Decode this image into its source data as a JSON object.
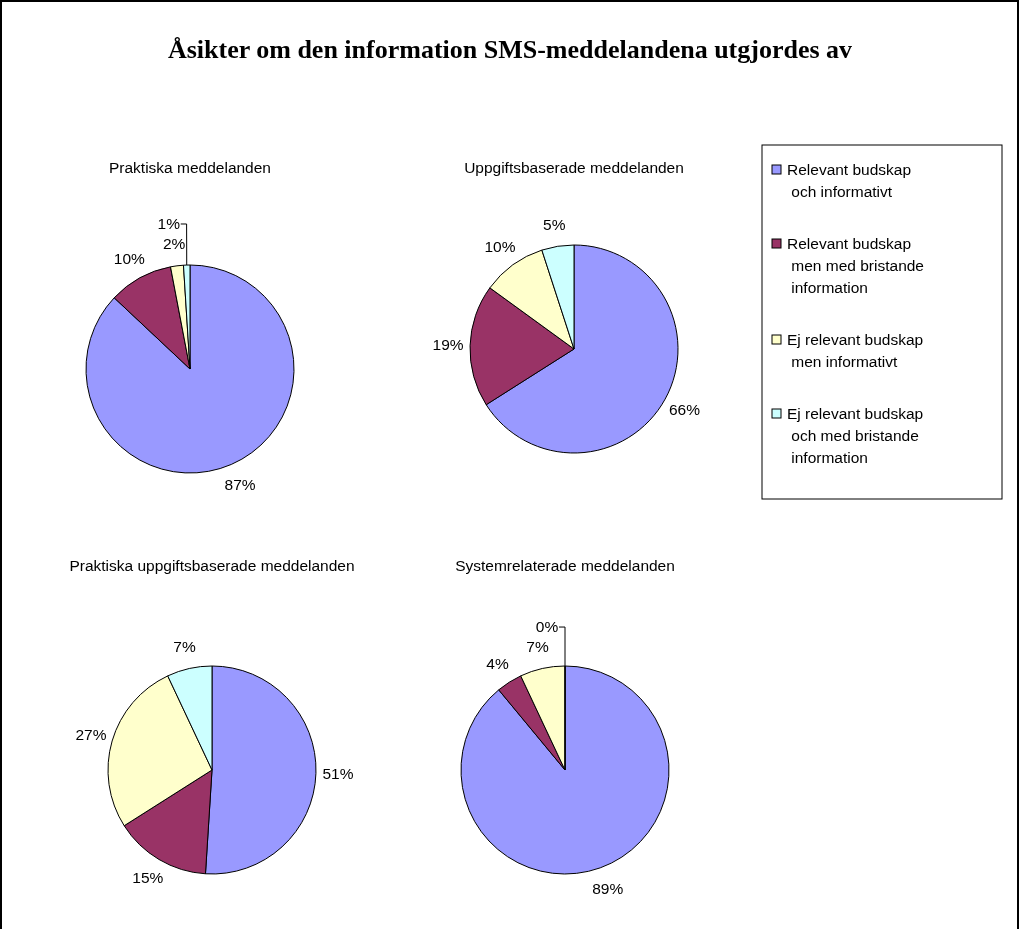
{
  "chart_data": [
    {
      "type": "other",
      "title": "Åsikter om den information SMS-meddelandena utgjordes av"
    },
    {
      "type": "pie",
      "title": "Praktiska meddelanden",
      "values": [
        87,
        10,
        2,
        1
      ],
      "value_labels": [
        "87%",
        "10%",
        "2%",
        "1%"
      ],
      "colors": [
        "#9999ff",
        "#993366",
        "#ffffcc",
        "#ccffff"
      ]
    },
    {
      "type": "pie",
      "title": "Uppgiftsbaserade meddelanden",
      "categories": [
        "Relevant budskap och informativt",
        "Relevant budskap men med bristande information",
        "Ej relevant budskap men informativt",
        "Ej relevant budskap och med bristande information"
      ],
      "values": [
        66,
        19,
        10,
        5
      ],
      "value_labels": [
        "66%",
        "19%",
        "10%",
        "5%"
      ],
      "colors": [
        "#9999ff",
        "#993366",
        "#ffffcc",
        "#ccffff"
      ],
      "legend": "right"
    },
    {
      "type": "pie",
      "title": "Praktiska uppgiftsbaserade meddelanden",
      "values": [
        51,
        15,
        27,
        7
      ],
      "value_labels": [
        "51%",
        "15%",
        "27%",
        "7%"
      ],
      "colors": [
        "#9999ff",
        "#993366",
        "#ffffcc",
        "#ccffff"
      ]
    },
    {
      "type": "pie",
      "title": "Systemrelaterade meddelanden",
      "values": [
        89,
        4,
        7,
        0
      ],
      "value_labels": [
        "89%",
        "4%",
        "7%",
        "0%"
      ],
      "colors": [
        "#9999ff",
        "#993366",
        "#ffffcc",
        "#ccffff"
      ]
    }
  ]
}
